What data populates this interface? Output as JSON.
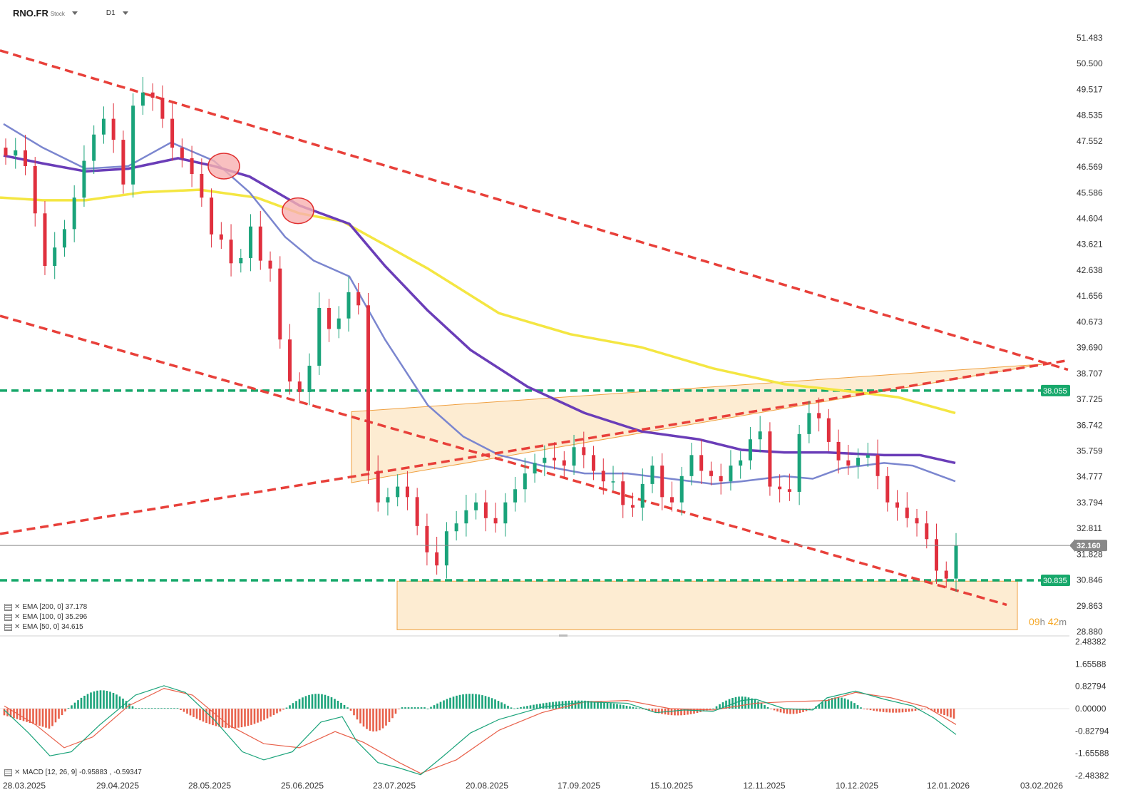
{
  "header": {
    "symbol": "RNO.FR",
    "type_tag": "Stock",
    "timeframe": "D1"
  },
  "indicators": [
    {
      "label": "EMA [200, 0]",
      "value": "37.178",
      "color": "#f4e642"
    },
    {
      "label": "EMA [100, 0]",
      "value": "35.296",
      "color": "#6a3db8"
    },
    {
      "label": "EMA [50, 0]",
      "value": "34.615",
      "color": "#7b86cf"
    }
  ],
  "macd": {
    "label": "MACD [12, 26, 9]",
    "value1": "-0.95883",
    "value2": "-0.59347"
  },
  "countdown": {
    "hours": "09",
    "h": "h",
    "minutes": "42",
    "m": "m"
  },
  "price_labels": {
    "current": "32.160",
    "level_high": "38.055",
    "level_low": "30.835"
  },
  "colors": {
    "up": "#1aa37a",
    "down": "#e0303e",
    "trend": "#e8403a",
    "support": "#17a86b",
    "zone": "#fde7c7",
    "zone_border": "#f0a040"
  },
  "chart_data": [
    {
      "type": "candlestick",
      "title": "",
      "x_ticks": [
        "28.03.2025",
        "29.04.2025",
        "28.05.2025",
        "25.06.2025",
        "23.07.2025",
        "20.08.2025",
        "17.09.2025",
        "15.10.2025",
        "12.11.2025",
        "10.12.2025",
        "12.01.2026",
        "03.02.2026"
      ],
      "y_ticks": [
        "51.483",
        "50.500",
        "49.517",
        "48.535",
        "47.552",
        "46.569",
        "45.586",
        "44.604",
        "43.621",
        "42.638",
        "41.656",
        "40.673",
        "39.690",
        "38.707",
        "37.725",
        "36.742",
        "35.759",
        "34.777",
        "33.794",
        "32.811",
        "31.828",
        "30.846",
        "29.863",
        "28.880"
      ],
      "ylim": [
        28.88,
        51.483
      ],
      "last_price": 32.16,
      "horizontal_levels": [
        38.055,
        30.835
      ],
      "series": [
        {
          "name": "EMA [200, 0]",
          "value": 37.178
        },
        {
          "name": "EMA [100, 0]",
          "value": 35.296
        },
        {
          "name": "EMA [50, 0]",
          "value": 34.615
        }
      ],
      "close_approx": [
        47.0,
        47.2,
        46.6,
        44.8,
        42.8,
        43.5,
        44.2,
        45.4,
        46.8,
        47.8,
        48.4,
        47.6,
        45.9,
        48.9,
        49.4,
        49.2,
        48.4,
        47.3,
        46.9,
        46.3,
        45.4,
        44.0,
        43.8,
        42.9,
        43.1,
        44.3,
        43.0,
        42.7,
        40.0,
        38.4,
        38.0,
        39.0,
        41.2,
        40.4,
        40.8,
        41.8,
        41.3,
        35.0,
        33.8,
        34.0,
        34.4,
        34.0,
        32.9,
        31.9,
        31.4,
        32.7,
        33.0,
        33.5,
        33.8,
        33.2,
        33.0,
        33.8,
        34.3,
        34.9,
        35.3,
        35.5,
        35.4,
        35.2,
        35.9,
        35.6,
        35.0,
        34.6,
        34.6,
        33.7,
        33.6,
        34.5,
        35.2,
        34.0,
        33.8,
        34.8,
        35.6,
        35.0,
        34.8,
        34.6,
        35.2,
        35.4,
        36.2,
        36.5,
        34.4,
        34.3,
        34.2,
        36.4,
        37.2,
        37.0,
        36.1,
        35.4,
        35.2,
        35.5,
        35.6,
        34.8,
        33.8,
        33.6,
        33.2,
        33.0,
        32.4,
        31.2,
        30.9,
        32.16
      ]
    },
    {
      "type": "bar",
      "title": "",
      "name": "MACD [12, 26, 9]",
      "y_ticks": [
        "2.48382",
        "1.65588",
        "0.82794",
        "0.00000",
        "-0.82794",
        "-1.65588",
        "-2.48382"
      ],
      "ylim": [
        -2.48382,
        2.48382
      ],
      "macd_line_last": -0.95883,
      "signal_last": -0.59347
    }
  ]
}
